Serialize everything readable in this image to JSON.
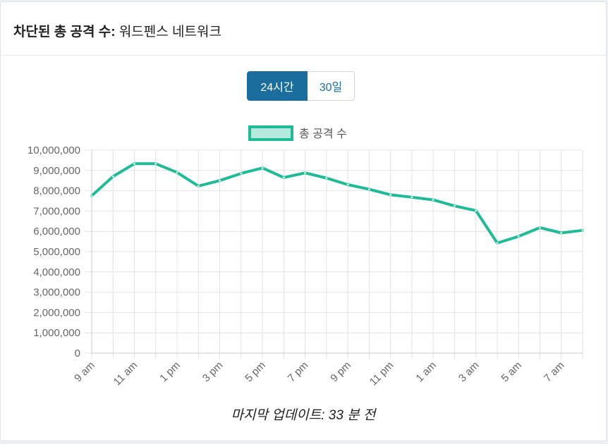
{
  "header": {
    "label": "차단된 총 공격 수:",
    "value": "워드펜스 네트워크"
  },
  "range_buttons": [
    {
      "label": "24시간",
      "active": true
    },
    {
      "label": "30일",
      "active": false
    }
  ],
  "footer": {
    "last_updated": "마지막 업데이트: 33 분 전"
  },
  "colors": {
    "line": "#1fbb97",
    "legend_fill": "#b6e9dd",
    "grid": "#e2e2e2",
    "active_button": "#1a6e9d"
  },
  "chart_data": {
    "type": "line",
    "legend_position": "top",
    "grid": true,
    "ylim": [
      0,
      10000000
    ],
    "y_ticks": [
      "10,000,000",
      "9,000,000",
      "8,000,000",
      "7,000,000",
      "6,000,000",
      "5,000,000",
      "4,000,000",
      "3,000,000",
      "2,000,000",
      "1,000,000",
      "0"
    ],
    "x_tick_labels": [
      "9 am",
      "11 am",
      "1 pm",
      "3 pm",
      "5 pm",
      "7 pm",
      "9 pm",
      "11 pm",
      "1 am",
      "3 am",
      "5 am",
      "7 am"
    ],
    "x": [
      "9 am",
      "10 am",
      "11 am",
      "12 pm",
      "1 pm",
      "2 pm",
      "3 pm",
      "4 pm",
      "5 pm",
      "6 pm",
      "7 pm",
      "8 pm",
      "9 pm",
      "10 pm",
      "11 pm",
      "12 am",
      "1 am",
      "2 am",
      "3 am",
      "4 am",
      "5 am",
      "6 am",
      "7 am",
      "8 am"
    ],
    "series": [
      {
        "name": "총 공격 수",
        "values": [
          7750000,
          8700000,
          9330000,
          9330000,
          8900000,
          8230000,
          8500000,
          8850000,
          9120000,
          8650000,
          8880000,
          8620000,
          8300000,
          8070000,
          7800000,
          7680000,
          7550000,
          7250000,
          7020000,
          5420000,
          5750000,
          6180000,
          5920000,
          6050000
        ]
      }
    ]
  }
}
